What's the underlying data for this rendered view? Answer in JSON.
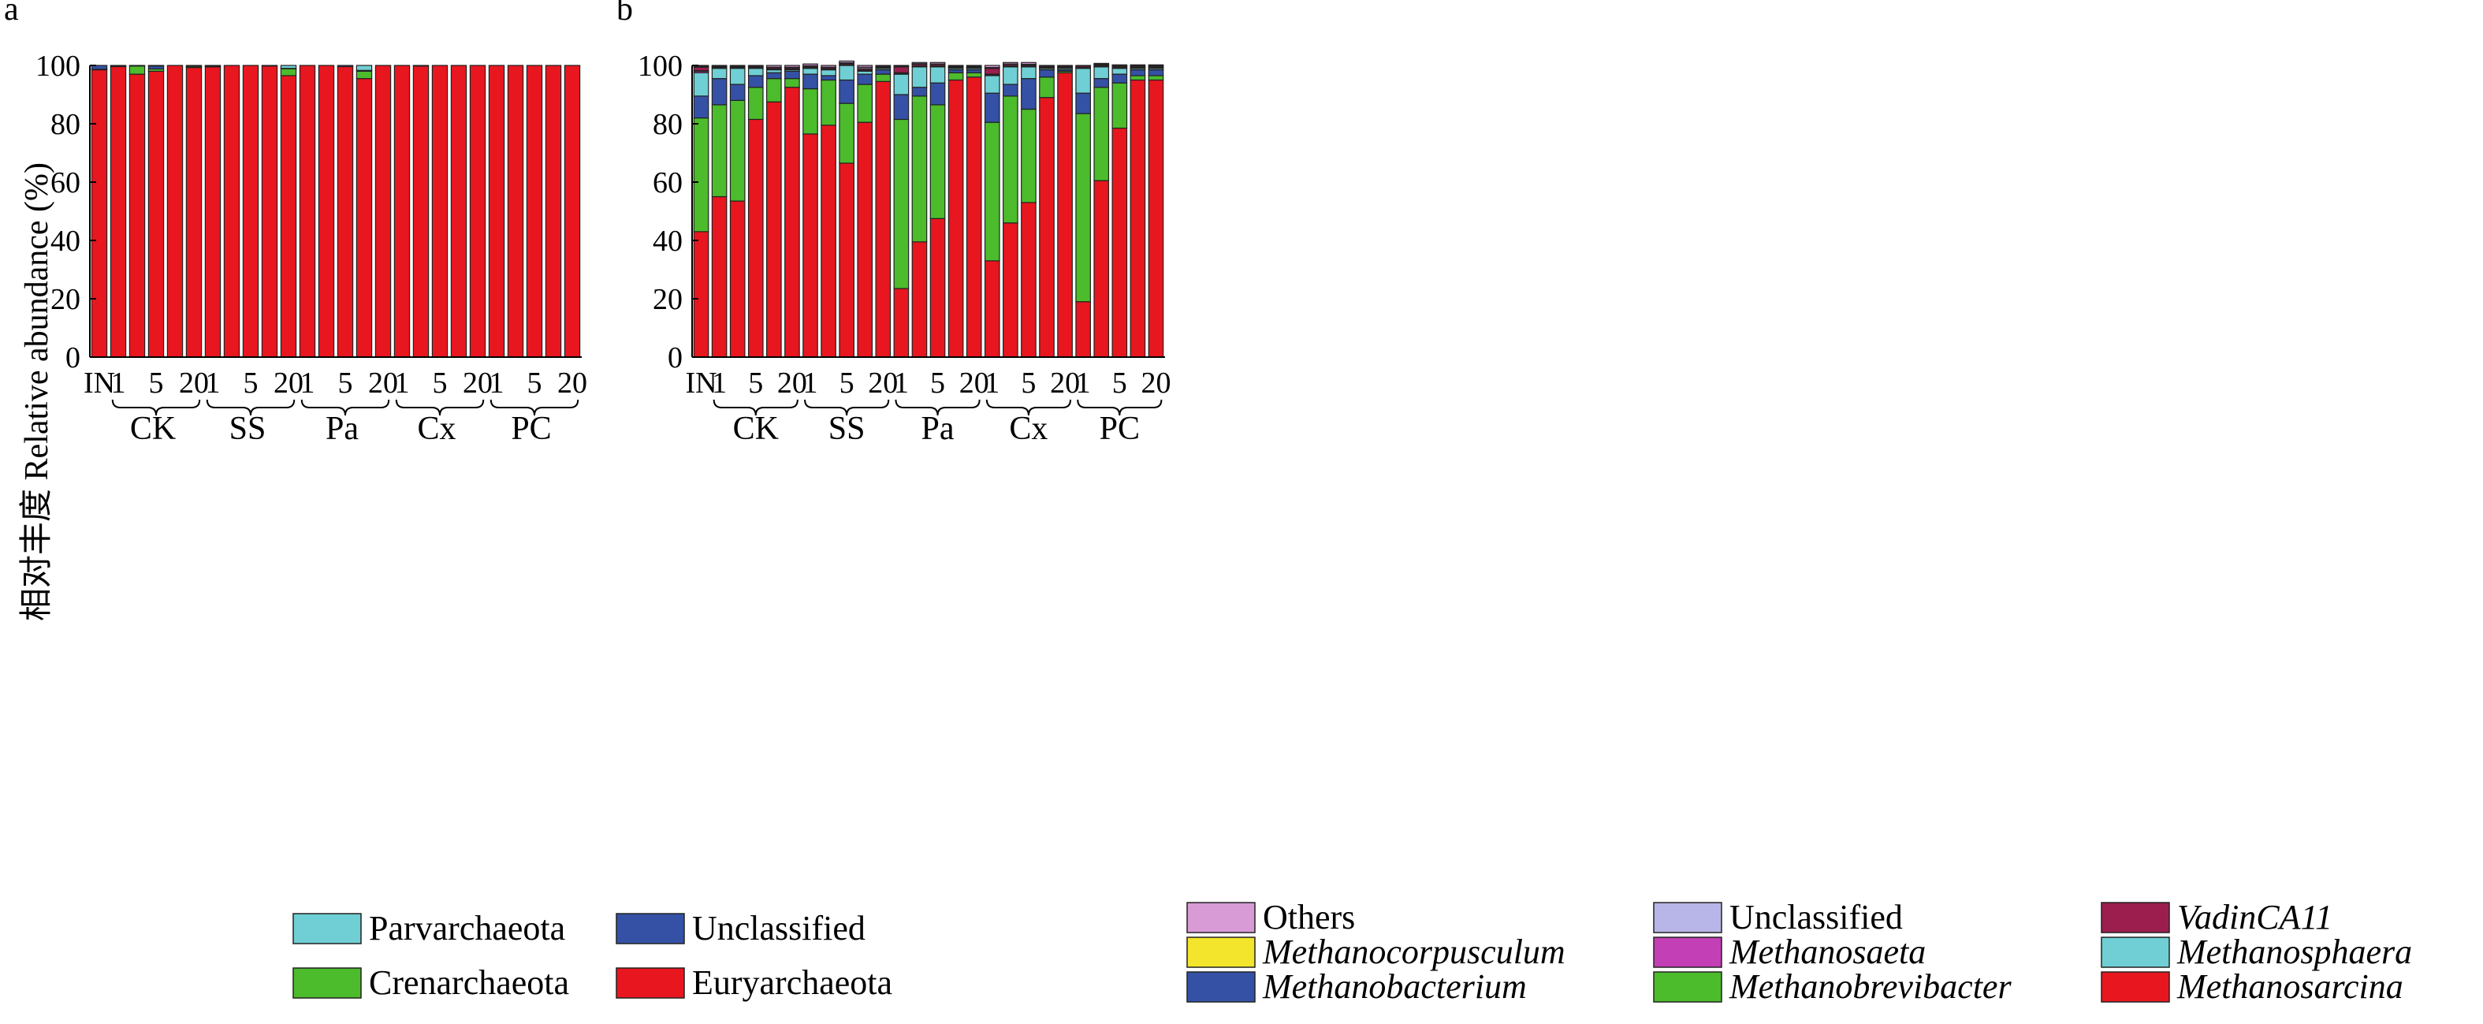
{
  "ylabel": "相对丰度 Relative abundance (%)",
  "yticks": [
    0,
    20,
    40,
    60,
    80,
    100
  ],
  "ylim": [
    0,
    100
  ],
  "xtick_labels": [
    "IN",
    "1",
    "",
    "5",
    "",
    "20",
    "1",
    "",
    "5",
    "",
    "20",
    "1",
    "",
    "5",
    "",
    "20",
    "1",
    "",
    "5",
    "",
    "20",
    "1",
    "",
    "5",
    "",
    "20"
  ],
  "groups": [
    "CK",
    "SS",
    "Pa",
    "Cx",
    "PC"
  ],
  "chart_data": [
    {
      "panel": "a",
      "type": "bar",
      "stacked": true,
      "categories": [
        "IN",
        "CK-1",
        "CK-2",
        "CK-5",
        "CK-10",
        "CK-20",
        "SS-1",
        "SS-2",
        "SS-5",
        "SS-10",
        "SS-20",
        "Pa-1",
        "Pa-2",
        "Pa-5",
        "Pa-10",
        "Pa-20",
        "Cx-1",
        "Cx-2",
        "Cx-5",
        "Cx-10",
        "Cx-20",
        "PC-1",
        "PC-2",
        "PC-5",
        "PC-10",
        "PC-20"
      ],
      "ylabel": "相对丰度 Relative abundance (%)",
      "ylim": [
        0,
        100
      ],
      "legend": {
        "position": "bottom",
        "columns": 2
      },
      "legend_order": [
        "Parvarchaeota",
        "Unclassified",
        "Crenarchaeota",
        "Euryarchaeota"
      ],
      "series": [
        {
          "name": "Euryarchaeota",
          "color": "#e8161e",
          "values": [
            98.5,
            99.6,
            97.0,
            98.0,
            100,
            99.3,
            99.5,
            100,
            100,
            99.8,
            96.5,
            100,
            100,
            99.6,
            95.5,
            100,
            100,
            99.8,
            100,
            100,
            100,
            100,
            100,
            100,
            100,
            100
          ]
        },
        {
          "name": "Crenarchaeota",
          "color": "#4cbb2c",
          "values": [
            0.2,
            0.2,
            2.8,
            0.8,
            0,
            0.4,
            0.3,
            0,
            0,
            0,
            2.4,
            0,
            0,
            0,
            2.5,
            0,
            0,
            0,
            0,
            0,
            0,
            0,
            0,
            0,
            0,
            0
          ]
        },
        {
          "name": "Unclassified",
          "color": "#3551a6",
          "values": [
            1.3,
            0.2,
            0.2,
            1.0,
            0,
            0.3,
            0.2,
            0,
            0,
            0.2,
            0.1,
            0,
            0,
            0.4,
            0.3,
            0,
            0,
            0.2,
            0,
            0,
            0,
            0,
            0,
            0,
            0,
            0
          ]
        },
        {
          "name": "Parvarchaeota",
          "color": "#6fcfd4",
          "values": [
            0,
            0,
            0,
            0.2,
            0,
            0,
            0,
            0,
            0,
            0,
            1.0,
            0,
            0,
            0,
            1.7,
            0,
            0,
            0,
            0,
            0,
            0,
            0,
            0,
            0,
            0,
            0
          ]
        }
      ]
    },
    {
      "panel": "b",
      "type": "bar",
      "stacked": true,
      "categories": [
        "IN",
        "CK-1",
        "CK-2",
        "CK-5",
        "CK-10",
        "CK-20",
        "SS-1",
        "SS-2",
        "SS-5",
        "SS-10",
        "SS-20",
        "Pa-1",
        "Pa-2",
        "Pa-5",
        "Pa-10",
        "Pa-20",
        "Cx-1",
        "Cx-2",
        "Cx-5",
        "Cx-10",
        "Cx-20",
        "PC-1",
        "PC-2",
        "PC-5",
        "PC-10",
        "PC-20"
      ],
      "ylabel": "相对丰度 Relative abundance (%)",
      "ylim": [
        0,
        100
      ],
      "legend": {
        "position": "bottom",
        "columns": 3
      },
      "legend_order": [
        "Others",
        "Unclassified",
        "VadinCA11",
        "Methanocorpusculum",
        "Methanosaeta",
        "Methanosphaera",
        "Methanobacterium",
        "Methanobrevibacter",
        "Methanosarcina"
      ],
      "series": [
        {
          "name": "Methanosarcina",
          "color": "#e8161e",
          "values": [
            43.0,
            55.0,
            53.5,
            81.5,
            87.5,
            92.5,
            76.5,
            79.5,
            66.5,
            80.5,
            94.5,
            23.5,
            39.5,
            47.5,
            95.0,
            96.0,
            33.0,
            46.0,
            53.0,
            89.0,
            97.5,
            19.0,
            60.5,
            78.5,
            95.0,
            95.0
          ]
        },
        {
          "name": "Methanobrevibacter",
          "color": "#4cbb2c",
          "values": [
            39.0,
            31.5,
            34.5,
            11.0,
            8.0,
            3.0,
            15.5,
            15.5,
            20.5,
            13.0,
            2.5,
            58.0,
            50.0,
            39.0,
            2.5,
            1.5,
            47.5,
            43.5,
            32.0,
            7.0,
            0.5,
            64.5,
            32.0,
            15.5,
            1.5,
            1.5
          ]
        },
        {
          "name": "Methanobacterium",
          "color": "#3551a6",
          "values": [
            7.5,
            9.0,
            5.5,
            4.0,
            2.0,
            2.5,
            5.0,
            1.5,
            8.0,
            3.5,
            1.5,
            8.5,
            3.0,
            7.5,
            1.0,
            1.0,
            10.0,
            4.0,
            10.5,
            2.5,
            0.5,
            7.0,
            3.0,
            3.0,
            2.0,
            2.0
          ]
        },
        {
          "name": "Methanosphaera",
          "color": "#6fcfd4",
          "values": [
            8.0,
            3.5,
            5.5,
            2.5,
            1.0,
            0.5,
            2.0,
            2.0,
            5.0,
            1.0,
            0.5,
            7.0,
            7.0,
            5.5,
            0.5,
            0.5,
            6.0,
            6.0,
            4.0,
            0.5,
            0.5,
            8.5,
            4.0,
            2.0,
            0.5,
            0.5
          ]
        },
        {
          "name": "Methanosaeta",
          "color": "#c33fb5",
          "values": [
            0.5,
            0.2,
            0.2,
            0.2,
            0.2,
            0.2,
            0.2,
            0.2,
            0.2,
            0.3,
            0.2,
            0.2,
            0.2,
            0.2,
            0.2,
            0.2,
            0.2,
            0.2,
            0.2,
            0.2,
            0.2,
            0.2,
            0.2,
            0.2,
            0.2,
            0.2
          ]
        },
        {
          "name": "Methanocorpusculum",
          "color": "#f2e52b",
          "values": [
            0.2,
            0.1,
            0.1,
            0.1,
            0.1,
            0.1,
            0.1,
            0.1,
            0.1,
            0.1,
            0.1,
            0.3,
            0.1,
            0.1,
            0.1,
            0.1,
            0.3,
            0.1,
            0.1,
            0.1,
            0.1,
            0.1,
            0.1,
            0.1,
            0.1,
            0.1
          ]
        },
        {
          "name": "VadinCA11",
          "color": "#9c1e4e",
          "values": [
            1.2,
            0.3,
            0.3,
            0.4,
            0.4,
            0.4,
            0.4,
            0.4,
            0.4,
            0.5,
            0.4,
            2.0,
            0.6,
            0.5,
            0.3,
            0.3,
            2.0,
            0.5,
            0.4,
            0.4,
            0.4,
            0.5,
            0.4,
            0.4,
            0.4,
            0.4
          ]
        },
        {
          "name": "Unclassified",
          "color": "#b8b6e8",
          "values": [
            0.3,
            0.1,
            0.2,
            0.2,
            0.2,
            0.2,
            0.2,
            0.2,
            0.2,
            0.5,
            0.2,
            0.3,
            0.2,
            0.2,
            0.2,
            0.2,
            0.3,
            0.2,
            0.2,
            0.2,
            0.2,
            0.2,
            0.2,
            0.2,
            0.2,
            0.2
          ]
        },
        {
          "name": "Others",
          "color": "#d89bd6",
          "values": [
            0.3,
            0.3,
            0.2,
            0.1,
            0.6,
            0.6,
            0.6,
            0.6,
            0.6,
            0.6,
            0.1,
            0.2,
            0.4,
            0.5,
            0.2,
            0.2,
            0.7,
            0.5,
            0.6,
            0.1,
            0.1,
            0.0,
            0.3,
            0.3,
            0.3,
            0.3
          ]
        }
      ]
    }
  ]
}
